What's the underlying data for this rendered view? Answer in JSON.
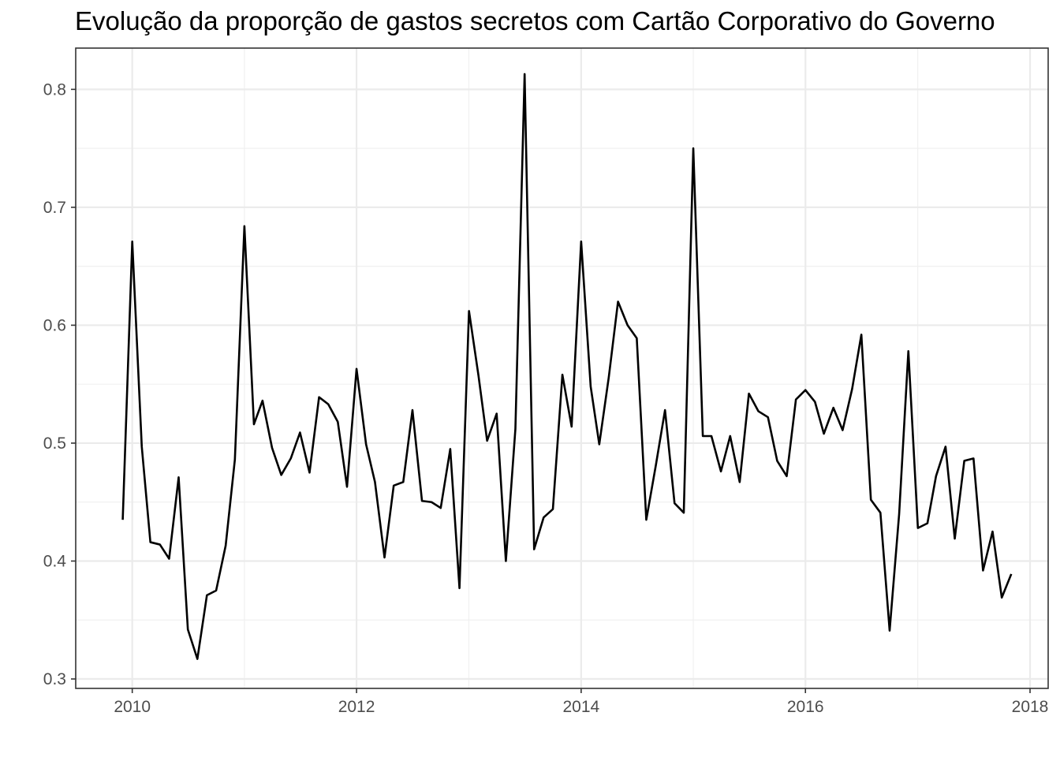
{
  "chart_data": {
    "type": "line",
    "title": "Evolução da proporção de gastos secretos com Cartão Corporativo do Governo",
    "xlabel": "",
    "ylabel": "",
    "grid": true,
    "xlim": [
      "2009-07-01",
      "2018-03-01"
    ],
    "ylim": [
      0.292,
      0.835
    ],
    "x_ticks": [
      "2010",
      "2012",
      "2014",
      "2016",
      "2018"
    ],
    "y_ticks": [
      "0.3",
      "0.4",
      "0.5",
      "0.6",
      "0.7",
      "0.8"
    ],
    "line_color": "#000000",
    "series": [
      {
        "x": [
          "2009-12",
          "2010-01",
          "2010-02",
          "2010-03",
          "2010-04",
          "2010-05",
          "2010-06",
          "2010-07",
          "2010-08",
          "2010-09",
          "2010-10",
          "2010-11",
          "2010-12",
          "2011-01",
          "2011-02",
          "2011-03",
          "2011-04",
          "2011-05",
          "2011-06",
          "2011-07",
          "2011-08",
          "2011-09",
          "2011-10",
          "2011-11",
          "2011-12",
          "2012-01",
          "2012-02",
          "2012-03",
          "2012-04",
          "2012-05",
          "2012-06",
          "2012-07",
          "2012-08",
          "2012-09",
          "2012-10",
          "2012-11",
          "2012-12",
          "2013-01",
          "2013-02",
          "2013-03",
          "2013-04",
          "2013-05",
          "2013-06",
          "2013-07",
          "2013-08",
          "2013-09",
          "2013-10",
          "2013-11",
          "2013-12",
          "2014-01",
          "2014-02",
          "2014-03",
          "2014-04",
          "2014-05",
          "2014-06",
          "2014-07",
          "2014-08",
          "2014-09",
          "2014-10",
          "2014-11",
          "2014-12",
          "2015-01",
          "2015-02",
          "2015-03",
          "2015-04",
          "2015-05",
          "2015-06",
          "2015-07",
          "2015-08",
          "2015-09",
          "2015-10",
          "2015-11",
          "2015-12",
          "2016-01",
          "2016-02",
          "2016-03",
          "2016-04",
          "2016-05",
          "2016-06",
          "2016-07",
          "2016-08",
          "2016-09",
          "2016-10",
          "2016-11",
          "2016-12",
          "2017-01",
          "2017-02",
          "2017-03",
          "2017-04",
          "2017-05",
          "2017-06",
          "2017-07",
          "2017-08",
          "2017-09",
          "2017-10",
          "2017-11"
        ],
        "y": [
          0.435,
          0.671,
          0.497,
          0.416,
          0.414,
          0.402,
          0.471,
          0.342,
          0.317,
          0.371,
          0.375,
          0.413,
          0.486,
          0.684,
          0.516,
          0.536,
          0.496,
          0.473,
          0.487,
          0.509,
          0.475,
          0.539,
          0.533,
          0.518,
          0.463,
          0.563,
          0.499,
          0.467,
          0.403,
          0.464,
          0.467,
          0.528,
          0.451,
          0.45,
          0.445,
          0.495,
          0.377,
          0.612,
          0.557,
          0.502,
          0.525,
          0.4,
          0.512,
          0.813,
          0.41,
          0.437,
          0.444,
          0.558,
          0.514,
          0.671,
          0.548,
          0.499,
          0.556,
          0.62,
          0.6,
          0.589,
          0.435,
          0.481,
          0.528,
          0.449,
          0.441,
          0.75,
          0.506,
          0.506,
          0.476,
          0.506,
          0.467,
          0.542,
          0.527,
          0.522,
          0.485,
          0.472,
          0.537,
          0.545,
          0.535,
          0.508,
          0.53,
          0.511,
          0.546,
          0.592,
          0.452,
          0.441,
          0.341,
          0.44,
          0.578,
          0.428,
          0.432,
          0.472,
          0.497,
          0.419,
          0.485,
          0.487,
          0.392,
          0.425,
          0.369,
          0.389
        ]
      }
    ]
  }
}
